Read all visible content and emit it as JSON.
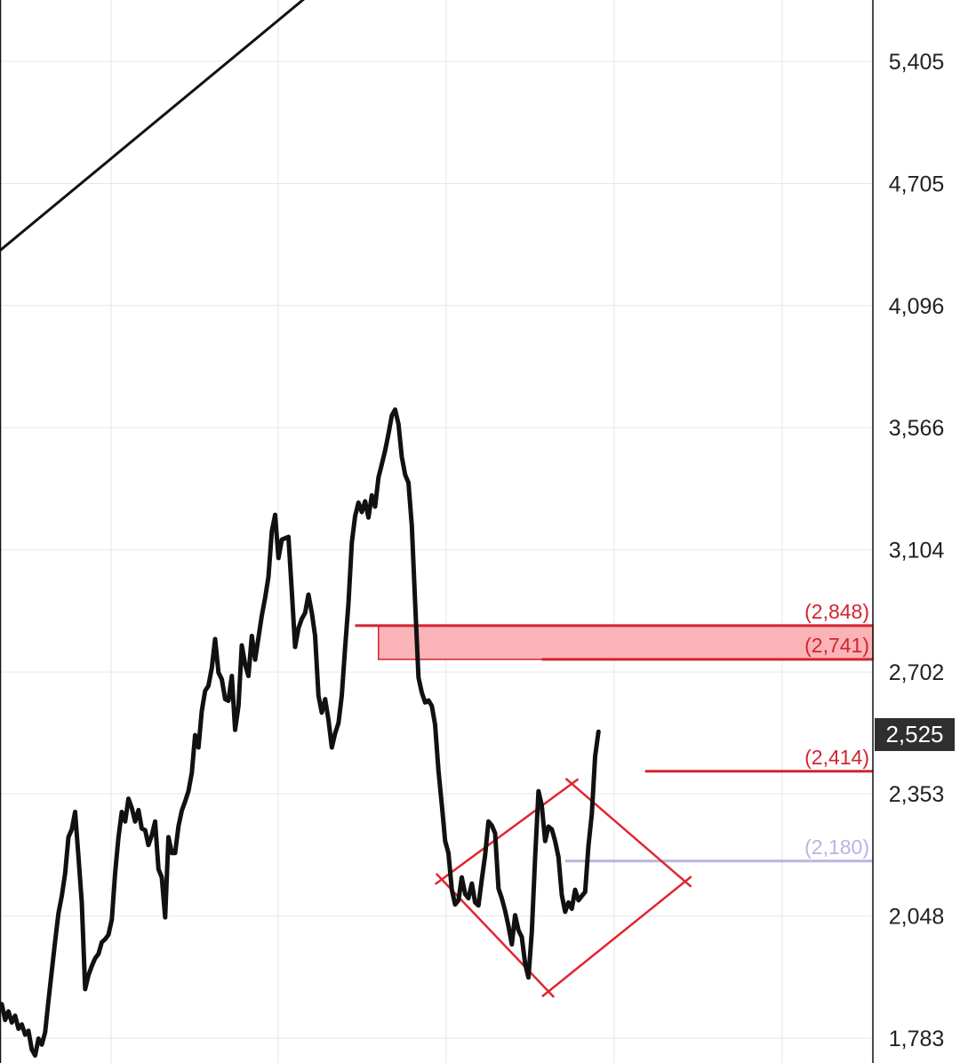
{
  "chart_data": {
    "type": "line",
    "title": "",
    "xlabel": "",
    "ylabel": "",
    "y_scale": "log",
    "ylim": [
      1750,
      5900
    ],
    "grid": true,
    "y_ticks": [
      {
        "value": 5405,
        "label": "5,405"
      },
      {
        "value": 4705,
        "label": "4,705"
      },
      {
        "value": 4096,
        "label": "4,096"
      },
      {
        "value": 3566,
        "label": "3,566"
      },
      {
        "value": 3104,
        "label": "3,104"
      },
      {
        "value": 2702,
        "label": "2,702"
      },
      {
        "value": 2353,
        "label": "2,353"
      },
      {
        "value": 2048,
        "label": "2,048"
      },
      {
        "value": 1783,
        "label": "1,783"
      }
    ],
    "current_price": {
      "value": 2525,
      "label": "2,525"
    },
    "levels": [
      {
        "value": 2848,
        "label": "(2,848)",
        "color": "#d3232f",
        "start_index": 106
      },
      {
        "value": 2741,
        "label": "(2,741)",
        "color": "#d3232f",
        "start_index": 162
      },
      {
        "value": 2414,
        "label": "(2,414)",
        "color": "#d3232f",
        "start_index": 193
      },
      {
        "value": 2180,
        "label": "(2,180)",
        "color": "#b9b4e0",
        "start_index": 169
      }
    ],
    "zone": {
      "from": 2741,
      "to": 2848,
      "start_index": 113,
      "color": "#f9a7ab",
      "border": "#d3232f"
    },
    "trendline": {
      "from": {
        "index": -5,
        "value": 4300
      },
      "to": {
        "index": 117,
        "value": 6300
      },
      "color": "#111111"
    },
    "diamond_pattern": {
      "color": "#e0262f",
      "points": [
        {
          "index": 132,
          "value": 2135
        },
        {
          "index": 164,
          "value": 1880
        },
        {
          "index": 205,
          "value": 2130
        },
        {
          "index": 171,
          "value": 2380
        }
      ]
    },
    "series": [
      {
        "color": "#111111",
        "x_start": 0,
        "values": [
          1853,
          1820,
          1838,
          1815,
          1829,
          1802,
          1811,
          1790,
          1798,
          1760,
          1748,
          1782,
          1770,
          1795,
          1860,
          1925,
          1990,
          2055,
          2095,
          2150,
          2240,
          2260,
          2305,
          2190,
          2080,
          1885,
          1915,
          1935,
          1952,
          1962,
          1988,
          1995,
          2005,
          2040,
          2150,
          2240,
          2305,
          2280,
          2340,
          2315,
          2280,
          2310,
          2262,
          2258,
          2220,
          2245,
          2280,
          2160,
          2140,
          2045,
          2240,
          2200,
          2200,
          2268,
          2308,
          2333,
          2360,
          2410,
          2515,
          2480,
          2585,
          2645,
          2660,
          2715,
          2805,
          2700,
          2680,
          2620,
          2615,
          2690,
          2530,
          2600,
          2785,
          2725,
          2690,
          2815,
          2740,
          2810,
          2880,
          2940,
          3010,
          3170,
          3230,
          3075,
          3140,
          3145,
          3150,
          2960,
          2780,
          2840,
          2870,
          2890,
          2950,
          2890,
          2815,
          2630,
          2580,
          2620,
          2560,
          2480,
          2520,
          2550,
          2630,
          2780,
          2920,
          3130,
          3225,
          3275,
          3240,
          3280,
          3220,
          3302,
          3260,
          3370,
          3420,
          3475,
          3540,
          3615,
          3640,
          3580,
          3450,
          3380,
          3350,
          3190,
          2925,
          2685,
          2640,
          2610,
          2616,
          2600,
          2545,
          2415,
          2325,
          2230,
          2200,
          2110,
          2075,
          2085,
          2140,
          2100,
          2090,
          2125,
          2080,
          2073,
          2135,
          2195,
          2280,
          2270,
          2250,
          2113,
          2090,
          2060,
          2025,
          1983,
          2050,
          2015,
          2000,
          1940,
          1910,
          2012,
          2188,
          2360,
          2322,
          2230,
          2267,
          2260,
          2230,
          2190,
          2098,
          2058,
          2080,
          2065,
          2110,
          2085,
          2095,
          2105,
          2218,
          2300,
          2455,
          2525
        ]
      }
    ]
  }
}
